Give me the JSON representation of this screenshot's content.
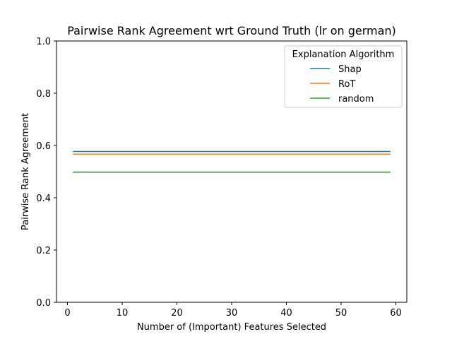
{
  "chart_data": {
    "type": "line",
    "title": "Pairwise Rank Agreement wrt Ground Truth (lr on german)",
    "xlabel": "Number of (Important) Features Selected",
    "ylabel": "Pairwise Rank Agreement",
    "xlim": [
      -2,
      62
    ],
    "ylim": [
      0.0,
      1.0
    ],
    "xticks": [
      0,
      10,
      20,
      30,
      40,
      50,
      60
    ],
    "xtick_labels": [
      "0",
      "10",
      "20",
      "30",
      "40",
      "50",
      "60"
    ],
    "yticks": [
      0.0,
      0.2,
      0.4,
      0.6,
      0.8,
      1.0
    ],
    "ytick_labels": [
      "0.0",
      "0.2",
      "0.4",
      "0.6",
      "0.8",
      "1.0"
    ],
    "grid": false,
    "legend": {
      "title": "Explanation Algorithm",
      "placement": "top-right"
    },
    "x": [
      1,
      59
    ],
    "series": [
      {
        "name": "Shap",
        "color": "#1f77b4",
        "values": [
          0.577,
          0.577
        ]
      },
      {
        "name": "RoT",
        "color": "#ff7f0e",
        "values": [
          0.567,
          0.567
        ]
      },
      {
        "name": "random",
        "color": "#2ca02c",
        "values": [
          0.498,
          0.498
        ]
      }
    ]
  }
}
